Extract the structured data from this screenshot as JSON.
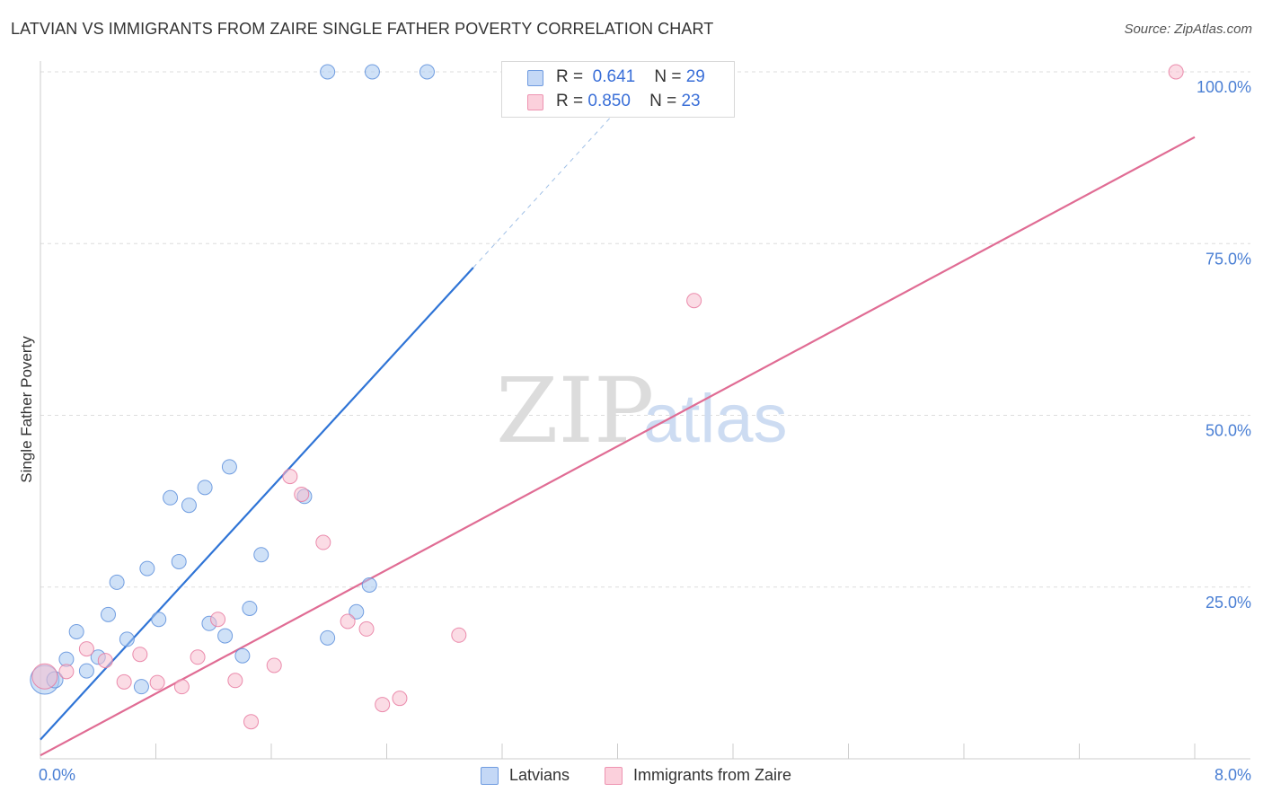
{
  "title": "LATVIAN VS IMMIGRANTS FROM ZAIRE SINGLE FATHER POVERTY CORRELATION CHART",
  "source": "Source: ZipAtlas.com",
  "watermark": {
    "zip": "ZIP",
    "atlas": "atlas"
  },
  "legend": {
    "r_label": "R =",
    "n_label": "N =",
    "series": [
      {
        "name": "Latvians",
        "r": "0.641",
        "n": "29",
        "color": "#a8c8f0",
        "edge": "#5d8fdc"
      },
      {
        "name": "Immigrants from Zaire",
        "r": "0.850",
        "n": "23",
        "color": "#f8c0d0",
        "edge": "#e77aa0"
      }
    ]
  },
  "chart_data": {
    "type": "scatter",
    "title": "LATVIAN VS IMMIGRANTS FROM ZAIRE SINGLE FATHER POVERTY CORRELATION CHART",
    "xlabel": "",
    "ylabel": "Single Father Poverty",
    "xlim": [
      0,
      8
    ],
    "ylim": [
      0,
      100
    ],
    "x_tick_labels": [
      "0.0%",
      "8.0%"
    ],
    "y_ticks": [
      25,
      50,
      75,
      100
    ],
    "y_tick_labels": [
      "25.0%",
      "50.0%",
      "75.0%",
      "100.0%"
    ],
    "grid": true,
    "legend_position": "top-center",
    "series": [
      {
        "name": "Latvians",
        "color": "#a8c8f0",
        "edge": "#5d8fdc",
        "line_color": "#2f74d6",
        "trend": {
          "x0": 0,
          "y0": 2.8,
          "x1": 3.0,
          "y1": 71.5,
          "dash_to_x": 4.0,
          "dash_to_y": 94.5
        },
        "points": [
          {
            "x": 0.03,
            "y": 11.5,
            "s": 16
          },
          {
            "x": 0.1,
            "y": 11.5,
            "s": 9
          },
          {
            "x": 0.18,
            "y": 14.5,
            "s": 8
          },
          {
            "x": 0.25,
            "y": 18.5,
            "s": 8
          },
          {
            "x": 0.32,
            "y": 12.8,
            "s": 8
          },
          {
            "x": 0.4,
            "y": 14.8,
            "s": 8
          },
          {
            "x": 0.47,
            "y": 21.0,
            "s": 8
          },
          {
            "x": 0.53,
            "y": 25.7,
            "s": 8
          },
          {
            "x": 0.6,
            "y": 17.4,
            "s": 8
          },
          {
            "x": 0.7,
            "y": 10.5,
            "s": 8
          },
          {
            "x": 0.74,
            "y": 27.7,
            "s": 8
          },
          {
            "x": 0.82,
            "y": 20.3,
            "s": 8
          },
          {
            "x": 0.9,
            "y": 38.0,
            "s": 8
          },
          {
            "x": 0.96,
            "y": 28.7,
            "s": 8
          },
          {
            "x": 1.03,
            "y": 36.9,
            "s": 8
          },
          {
            "x": 1.14,
            "y": 39.5,
            "s": 8
          },
          {
            "x": 1.17,
            "y": 19.7,
            "s": 8
          },
          {
            "x": 1.28,
            "y": 17.9,
            "s": 8
          },
          {
            "x": 1.31,
            "y": 42.5,
            "s": 8
          },
          {
            "x": 1.4,
            "y": 15.0,
            "s": 8
          },
          {
            "x": 1.45,
            "y": 21.9,
            "s": 8
          },
          {
            "x": 1.53,
            "y": 29.7,
            "s": 8
          },
          {
            "x": 1.83,
            "y": 38.2,
            "s": 8
          },
          {
            "x": 1.99,
            "y": 17.6,
            "s": 8
          },
          {
            "x": 2.19,
            "y": 21.4,
            "s": 8
          },
          {
            "x": 2.28,
            "y": 25.3,
            "s": 8
          },
          {
            "x": 1.99,
            "y": 100.0,
            "s": 8
          },
          {
            "x": 2.3,
            "y": 100.0,
            "s": 8
          },
          {
            "x": 2.68,
            "y": 100.0,
            "s": 8
          }
        ]
      },
      {
        "name": "Immigrants from Zaire",
        "color": "#f8c0d0",
        "edge": "#e77aa0",
        "line_color": "#e06c94",
        "trend": {
          "x0": 0,
          "y0": 0.5,
          "x1": 8.0,
          "y1": 90.5
        },
        "points": [
          {
            "x": 0.03,
            "y": 12.0,
            "s": 14
          },
          {
            "x": 0.18,
            "y": 12.7,
            "s": 8
          },
          {
            "x": 0.32,
            "y": 16.0,
            "s": 8
          },
          {
            "x": 0.45,
            "y": 14.3,
            "s": 8
          },
          {
            "x": 0.58,
            "y": 11.2,
            "s": 8
          },
          {
            "x": 0.69,
            "y": 15.2,
            "s": 8
          },
          {
            "x": 0.81,
            "y": 11.1,
            "s": 8
          },
          {
            "x": 0.98,
            "y": 10.5,
            "s": 8
          },
          {
            "x": 1.09,
            "y": 14.8,
            "s": 8
          },
          {
            "x": 1.23,
            "y": 20.3,
            "s": 8
          },
          {
            "x": 1.35,
            "y": 11.4,
            "s": 8
          },
          {
            "x": 1.46,
            "y": 5.4,
            "s": 8
          },
          {
            "x": 1.62,
            "y": 13.6,
            "s": 8
          },
          {
            "x": 1.73,
            "y": 41.1,
            "s": 8
          },
          {
            "x": 1.81,
            "y": 38.5,
            "s": 8
          },
          {
            "x": 1.96,
            "y": 31.5,
            "s": 8
          },
          {
            "x": 2.13,
            "y": 20.0,
            "s": 8
          },
          {
            "x": 2.26,
            "y": 18.9,
            "s": 8
          },
          {
            "x": 2.37,
            "y": 7.9,
            "s": 8
          },
          {
            "x": 2.49,
            "y": 8.8,
            "s": 8
          },
          {
            "x": 2.9,
            "y": 18.0,
            "s": 8
          },
          {
            "x": 4.53,
            "y": 66.7,
            "s": 8
          },
          {
            "x": 7.87,
            "y": 100.0,
            "s": 8
          }
        ]
      }
    ]
  }
}
